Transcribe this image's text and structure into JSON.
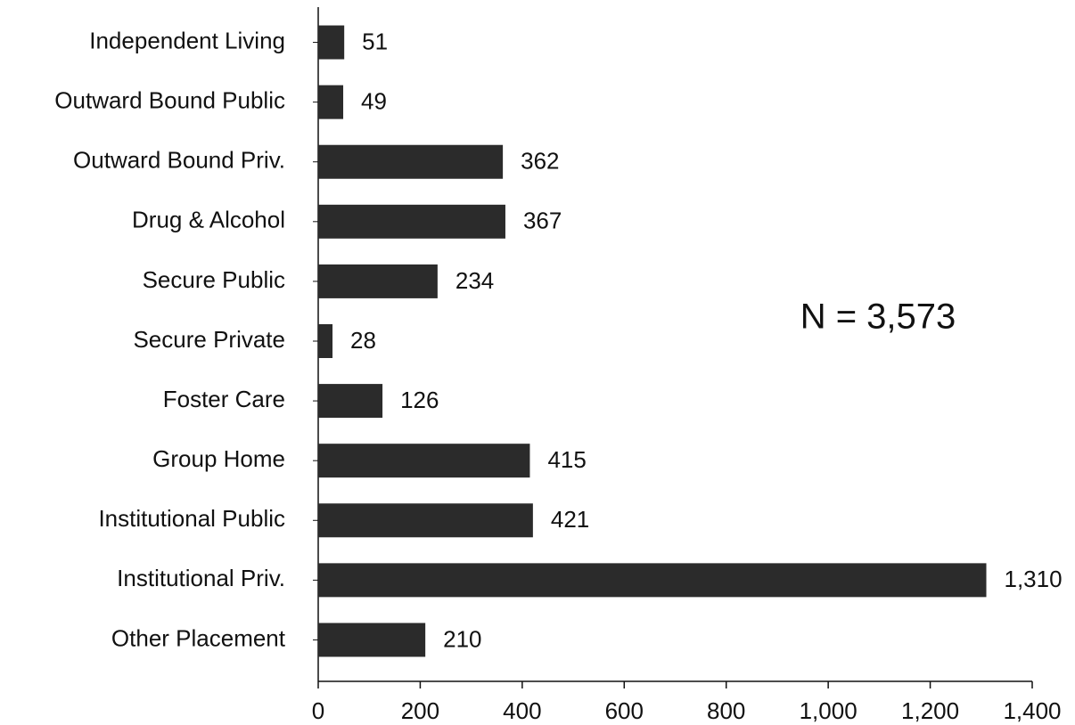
{
  "chart_data": {
    "type": "bar",
    "orientation": "horizontal",
    "categories": [
      "Independent Living",
      "Outward Bound Public",
      "Outward Bound Priv.",
      "Drug & Alcohol",
      "Secure Public",
      "Secure Private",
      "Foster Care",
      "Group Home",
      "Institutional Public",
      "Institutional Priv.",
      "Other Placement"
    ],
    "values": [
      51,
      49,
      362,
      367,
      234,
      28,
      126,
      415,
      421,
      1310,
      210
    ],
    "value_labels": [
      "51",
      "49",
      "362",
      "367",
      "234",
      "28",
      "126",
      "415",
      "421",
      "1,310",
      "210"
    ],
    "color": "#2b2b2b",
    "xlim": [
      0,
      1400
    ],
    "xticks": [
      0,
      200,
      400,
      600,
      800,
      {
        "value": 1000,
        "label": "1,000"
      },
      {
        "value": 1200,
        "label": "1,200"
      },
      {
        "value": 1400,
        "label": "1,400"
      }
    ],
    "annotations": [
      "N = 3,573"
    ]
  }
}
